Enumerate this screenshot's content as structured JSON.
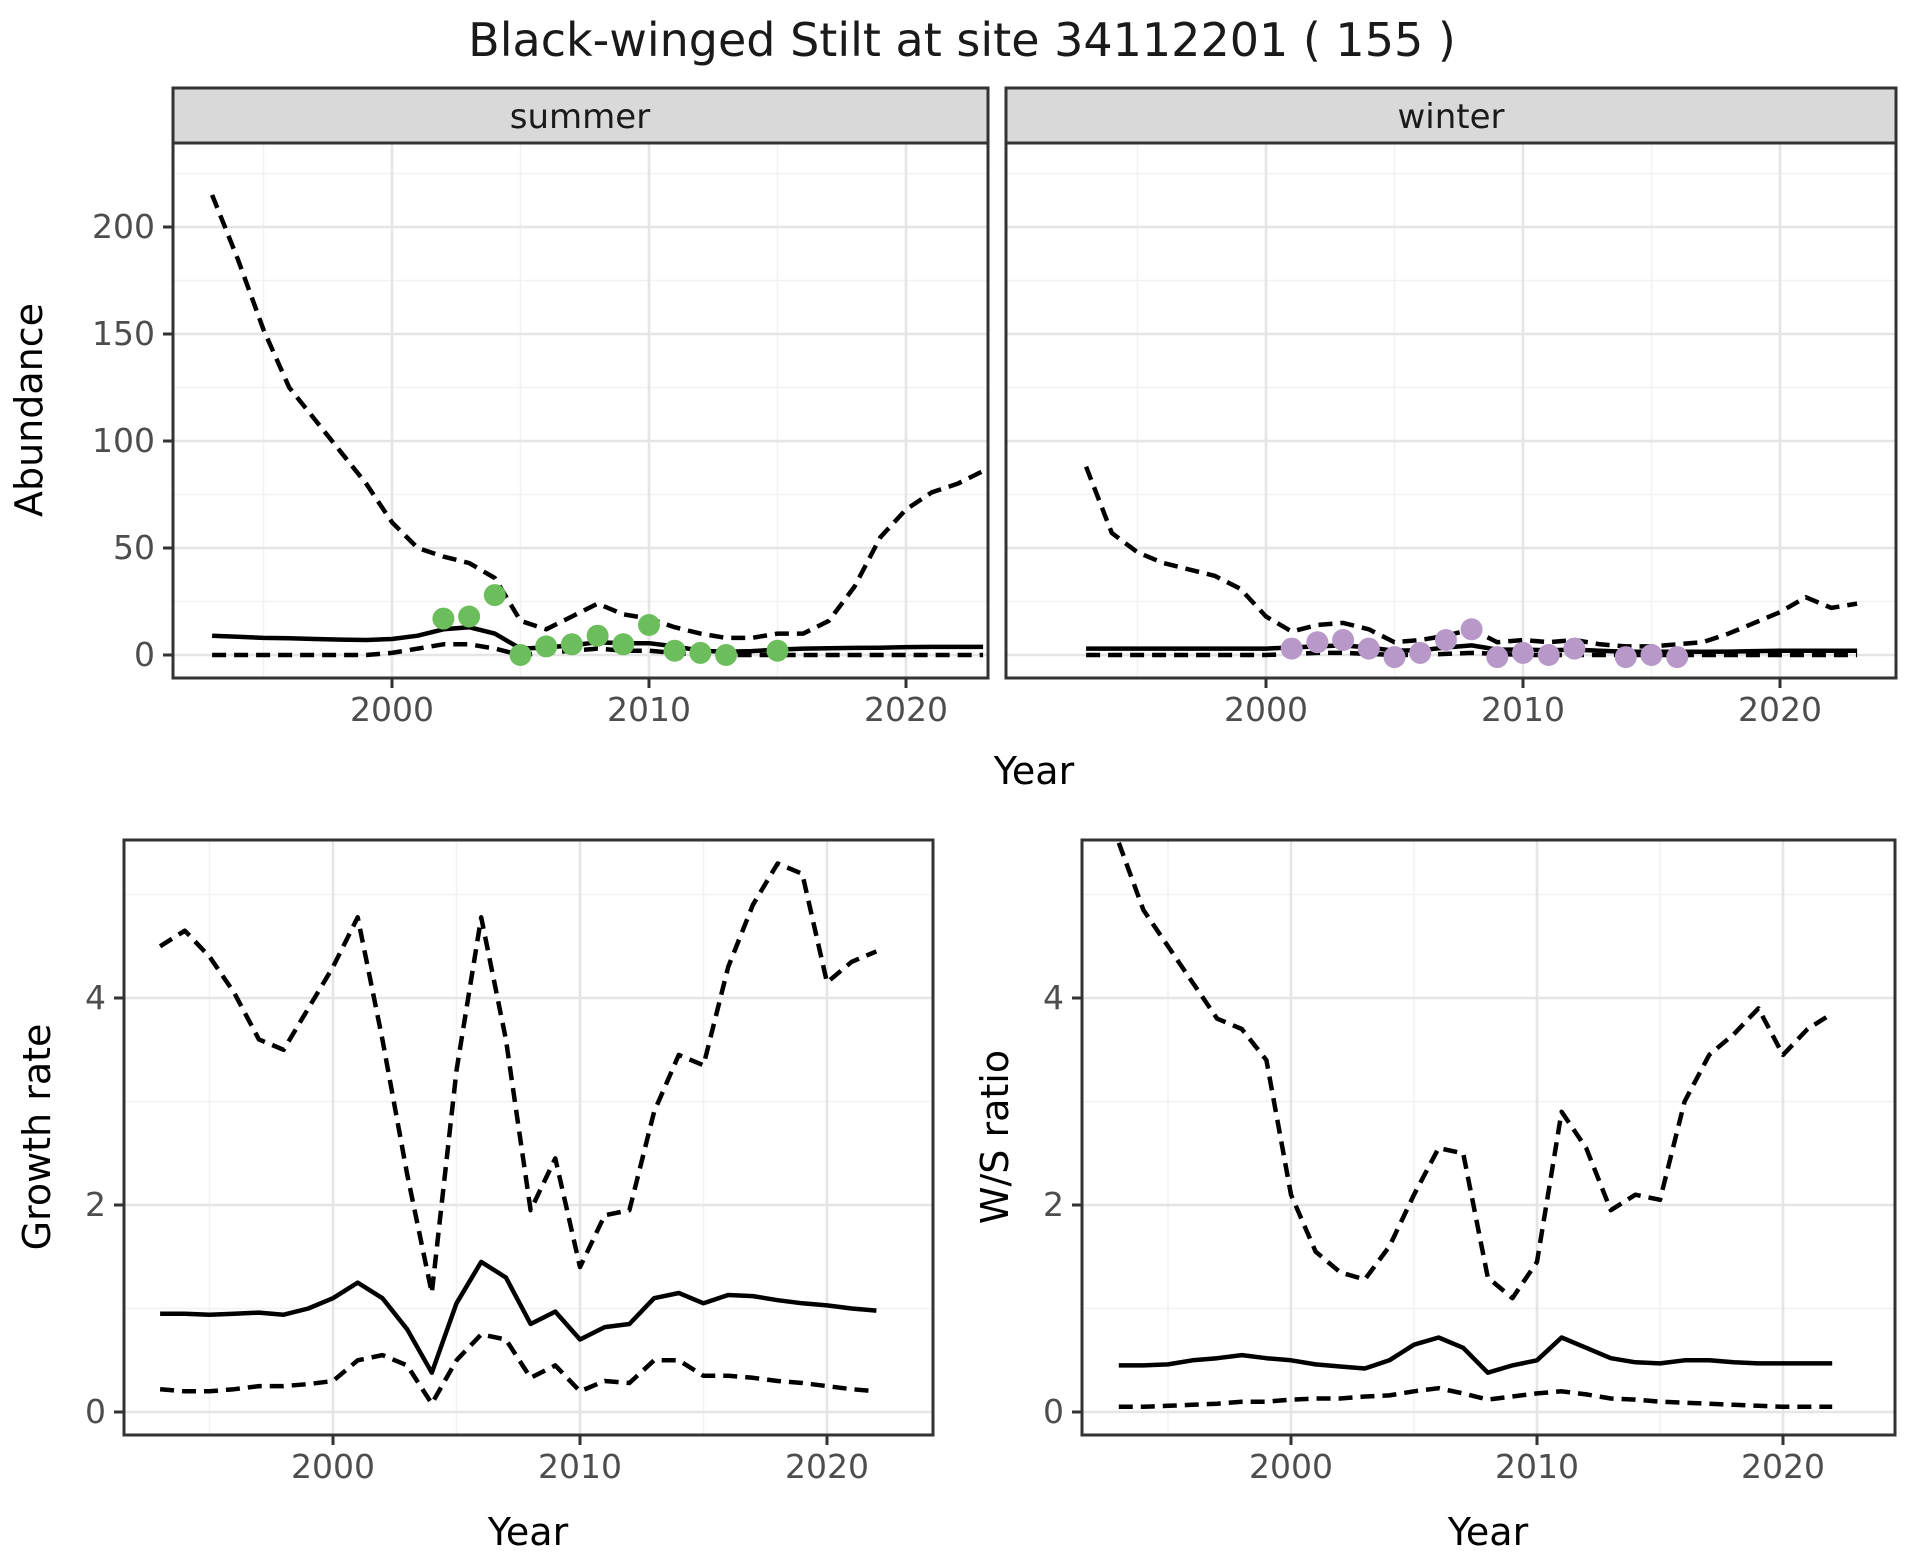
{
  "title": "Black-winged Stilt at site 34112201 ( 155 )",
  "facets": {
    "summer": "summer",
    "winter": "winter"
  },
  "axes": {
    "abundance_label": "Abundance",
    "growth_label": "Growth rate",
    "ws_label": "W/S ratio",
    "year_label_top": "Year",
    "year_label_growth": "Year",
    "year_label_ws": "Year"
  },
  "colors": {
    "line": "#000000",
    "summer_point": "#6cbe5c",
    "winter_point": "#b897c9",
    "strip_bg": "#d9d9d9",
    "border": "#333333",
    "grid_major": "#e5e5e5",
    "grid_minor": "#f2f2f2",
    "tick_text": "#4d4d4d",
    "background": "#ffffff"
  },
  "chart_data": [
    {
      "id": "summer",
      "type": "line",
      "facet": "summer",
      "xlabel": "Year",
      "ylabel": "Abundance",
      "xlim": [
        1991.5,
        2023.3
      ],
      "ylim": [
        -10,
        239
      ],
      "x": [
        1993,
        1994,
        1995,
        1996,
        1997,
        1998,
        1999,
        2000,
        2001,
        2002,
        2003,
        2004,
        2005,
        2006,
        2007,
        2008,
        2009,
        2010,
        2011,
        2012,
        2013,
        2014,
        2015,
        2016,
        2017,
        2018,
        2019,
        2020,
        2021,
        2022,
        2023
      ],
      "series": [
        {
          "name": "mean-fit",
          "style": "solid",
          "values": [
            9,
            8.5,
            8,
            7.8,
            7.5,
            7.2,
            7,
            7.5,
            9,
            12,
            13,
            10,
            3,
            3.5,
            4.5,
            6,
            5.5,
            5.5,
            4,
            2,
            1.5,
            1.8,
            2.5,
            3,
            3.2,
            3.3,
            3.4,
            3.7,
            3.8,
            3.8,
            3.8
          ]
        },
        {
          "name": "upper-ci",
          "style": "dashed",
          "values": [
            215,
            185,
            152,
            125,
            110,
            95,
            80,
            62,
            50,
            46,
            43,
            36,
            16,
            12,
            18,
            24,
            19,
            17,
            13,
            10,
            8,
            8,
            10,
            10,
            16,
            32,
            55,
            68,
            76,
            80,
            86
          ]
        },
        {
          "name": "lower-ci",
          "style": "dashed",
          "values": [
            0,
            0,
            0,
            0,
            0,
            0,
            0,
            1,
            3,
            5,
            5,
            3,
            0,
            1,
            2,
            3,
            2,
            2,
            1,
            0,
            0,
            0,
            0,
            0,
            0,
            0,
            0,
            0,
            0,
            0,
            0
          ]
        }
      ],
      "points": {
        "name": "observed-counts-summer",
        "x": [
          2002,
          2003,
          2004,
          2005,
          2006,
          2007,
          2008,
          2009,
          2010,
          2011,
          2012,
          2013,
          2015
        ],
        "y": [
          17,
          18,
          28,
          0,
          4,
          5,
          9,
          5,
          14,
          2,
          1,
          0,
          2
        ],
        "color": "#6cbe5c"
      },
      "xtick_values": [
        2000,
        2010,
        2020
      ],
      "xtick_labels": [
        "2000",
        "2010",
        "2020"
      ],
      "xticks_minor": [
        1995,
        2005,
        2015
      ],
      "ytick_values": [
        0,
        50,
        100,
        150,
        200
      ],
      "ytick_labels": [
        "0",
        "50",
        "100",
        "150",
        "200"
      ],
      "yticks_minor": [
        25,
        75,
        125,
        175,
        225
      ]
    },
    {
      "id": "winter",
      "type": "line",
      "facet": "winter",
      "xlabel": "Year",
      "ylabel": "Abundance",
      "xlim": [
        1990,
        2024.5
      ],
      "ylim": [
        -10,
        239
      ],
      "x": [
        1993,
        1994,
        1995,
        1996,
        1997,
        1998,
        1999,
        2000,
        2001,
        2002,
        2003,
        2004,
        2005,
        2006,
        2007,
        2008,
        2009,
        2010,
        2011,
        2012,
        2013,
        2014,
        2015,
        2016,
        2017,
        2018,
        2019,
        2020,
        2021,
        2022,
        2023
      ],
      "series": [
        {
          "name": "mean-fit",
          "style": "solid",
          "values": [
            3,
            3,
            3,
            3,
            3,
            3,
            3,
            3,
            3.5,
            4,
            4.5,
            3.5,
            2,
            2.2,
            3.5,
            4.5,
            2.5,
            2.5,
            2.2,
            2.5,
            2,
            1.5,
            1.5,
            1.5,
            1.5,
            1.6,
            1.8,
            2,
            2,
            2,
            2
          ]
        },
        {
          "name": "upper-ci",
          "style": "dashed",
          "values": [
            88,
            57,
            48,
            43,
            40,
            37,
            31,
            18,
            11,
            14,
            15,
            12,
            6,
            7,
            9,
            12,
            6,
            7,
            6,
            7,
            5,
            4,
            4,
            5,
            6,
            10,
            15,
            20,
            27,
            22,
            24
          ]
        },
        {
          "name": "lower-ci",
          "style": "dashed",
          "values": [
            0,
            0,
            0,
            0,
            0,
            0,
            0,
            0,
            0.5,
            1,
            1,
            0.5,
            0,
            0,
            0.5,
            1,
            0.5,
            0,
            0,
            0,
            0,
            0,
            0,
            0,
            0,
            0,
            0,
            0,
            0,
            0,
            0
          ]
        }
      ],
      "points": {
        "name": "observed-counts-winter",
        "x": [
          2001,
          2002,
          2003,
          2004,
          2005,
          2006,
          2007,
          2008,
          2009,
          2010,
          2011,
          2012,
          2014,
          2015,
          2016
        ],
        "y": [
          3,
          6,
          7,
          3,
          -1,
          1,
          7,
          12,
          -1,
          1,
          0,
          3,
          -1,
          0,
          -1
        ],
        "color": "#b897c9"
      },
      "xtick_values": [
        2000,
        2010,
        2020
      ],
      "xtick_labels": [
        "2000",
        "2010",
        "2020"
      ],
      "xticks_minor": [
        1995,
        2005,
        2015
      ],
      "ytick_values": [
        0,
        50,
        100,
        150,
        200
      ],
      "ytick_labels": [],
      "yticks_minor": [
        25,
        75,
        125,
        175,
        225
      ]
    },
    {
      "id": "growth",
      "type": "line",
      "xlabel": "Year",
      "ylabel": "Growth rate",
      "xlim": [
        1991.5,
        2024.3
      ],
      "ylim": [
        -0.22,
        5.55
      ],
      "x": [
        1993,
        1994,
        1995,
        1996,
        1997,
        1998,
        1999,
        2000,
        2001,
        2002,
        2003,
        2004,
        2005,
        2006,
        2007,
        2008,
        2009,
        2010,
        2011,
        2012,
        2013,
        2014,
        2015,
        2016,
        2017,
        2018,
        2019,
        2020,
        2021,
        2022
      ],
      "series": [
        {
          "name": "mean-fit",
          "style": "solid",
          "values": [
            0.95,
            0.95,
            0.94,
            0.95,
            0.96,
            0.94,
            1.0,
            1.1,
            1.25,
            1.1,
            0.8,
            0.38,
            1.05,
            1.45,
            1.3,
            0.85,
            0.97,
            0.7,
            0.82,
            0.85,
            1.1,
            1.15,
            1.05,
            1.13,
            1.12,
            1.08,
            1.05,
            1.03,
            1.0,
            0.98
          ]
        },
        {
          "name": "upper-ci",
          "style": "dashed",
          "values": [
            4.5,
            4.65,
            4.4,
            4.05,
            3.6,
            3.5,
            3.9,
            4.3,
            4.78,
            3.6,
            2.3,
            1.15,
            3.3,
            4.78,
            3.6,
            1.95,
            2.45,
            1.4,
            1.9,
            1.95,
            2.9,
            3.45,
            3.35,
            4.3,
            4.9,
            5.3,
            5.2,
            4.15,
            4.35,
            4.45
          ]
        },
        {
          "name": "lower-ci",
          "style": "dashed",
          "values": [
            0.22,
            0.2,
            0.2,
            0.22,
            0.25,
            0.25,
            0.27,
            0.3,
            0.5,
            0.55,
            0.45,
            0.08,
            0.5,
            0.75,
            0.7,
            0.33,
            0.45,
            0.2,
            0.3,
            0.28,
            0.5,
            0.5,
            0.35,
            0.35,
            0.33,
            0.3,
            0.28,
            0.25,
            0.22,
            0.2
          ]
        }
      ],
      "xtick_values": [
        2000,
        2010,
        2020
      ],
      "xtick_labels": [
        "2000",
        "2010",
        "2020"
      ],
      "xticks_minor": [
        1995,
        2005,
        2015
      ],
      "ytick_values": [
        0,
        2,
        4
      ],
      "ytick_labels": [
        "0",
        "2",
        "4"
      ],
      "yticks_minor": [
        1,
        3,
        5
      ]
    },
    {
      "id": "ws",
      "type": "line",
      "xlabel": "Year",
      "ylabel": "W/S ratio",
      "xlim": [
        1991.5,
        2024.5
      ],
      "ylim": [
        -0.22,
        5.55
      ],
      "x": [
        1993,
        1994,
        1995,
        1996,
        1997,
        1998,
        1999,
        2000,
        2001,
        2002,
        2003,
        2004,
        2005,
        2006,
        2007,
        2008,
        2009,
        2010,
        2011,
        2012,
        2013,
        2014,
        2015,
        2016,
        2017,
        2018,
        2019,
        2020,
        2021,
        2022
      ],
      "series": [
        {
          "name": "mean-fit",
          "style": "solid",
          "values": [
            0.45,
            0.45,
            0.46,
            0.5,
            0.52,
            0.55,
            0.52,
            0.5,
            0.46,
            0.44,
            0.42,
            0.5,
            0.65,
            0.72,
            0.62,
            0.38,
            0.45,
            0.5,
            0.72,
            0.62,
            0.52,
            0.48,
            0.47,
            0.5,
            0.5,
            0.48,
            0.47,
            0.47,
            0.47,
            0.47
          ]
        },
        {
          "name": "upper-ci",
          "style": "dashed",
          "values": [
            5.5,
            4.85,
            4.5,
            4.15,
            3.8,
            3.7,
            3.4,
            2.1,
            1.55,
            1.35,
            1.28,
            1.6,
            2.1,
            2.55,
            2.5,
            1.3,
            1.1,
            1.45,
            2.9,
            2.55,
            1.95,
            2.1,
            2.05,
            3.0,
            3.45,
            3.65,
            3.9,
            3.45,
            3.7,
            3.85
          ]
        },
        {
          "name": "lower-ci",
          "style": "dashed",
          "values": [
            0.05,
            0.05,
            0.06,
            0.07,
            0.08,
            0.1,
            0.1,
            0.12,
            0.13,
            0.13,
            0.15,
            0.16,
            0.2,
            0.23,
            0.18,
            0.12,
            0.15,
            0.18,
            0.2,
            0.17,
            0.13,
            0.12,
            0.1,
            0.09,
            0.08,
            0.07,
            0.06,
            0.05,
            0.05,
            0.05
          ]
        }
      ],
      "xtick_values": [
        2000,
        2010,
        2020
      ],
      "xtick_labels": [
        "2000",
        "2010",
        "2020"
      ],
      "xticks_minor": [
        1995,
        2005,
        2015
      ],
      "ytick_values": [
        0,
        2,
        4
      ],
      "ytick_labels": [
        "0",
        "2",
        "4"
      ],
      "yticks_minor": [
        1,
        3,
        5
      ]
    }
  ]
}
